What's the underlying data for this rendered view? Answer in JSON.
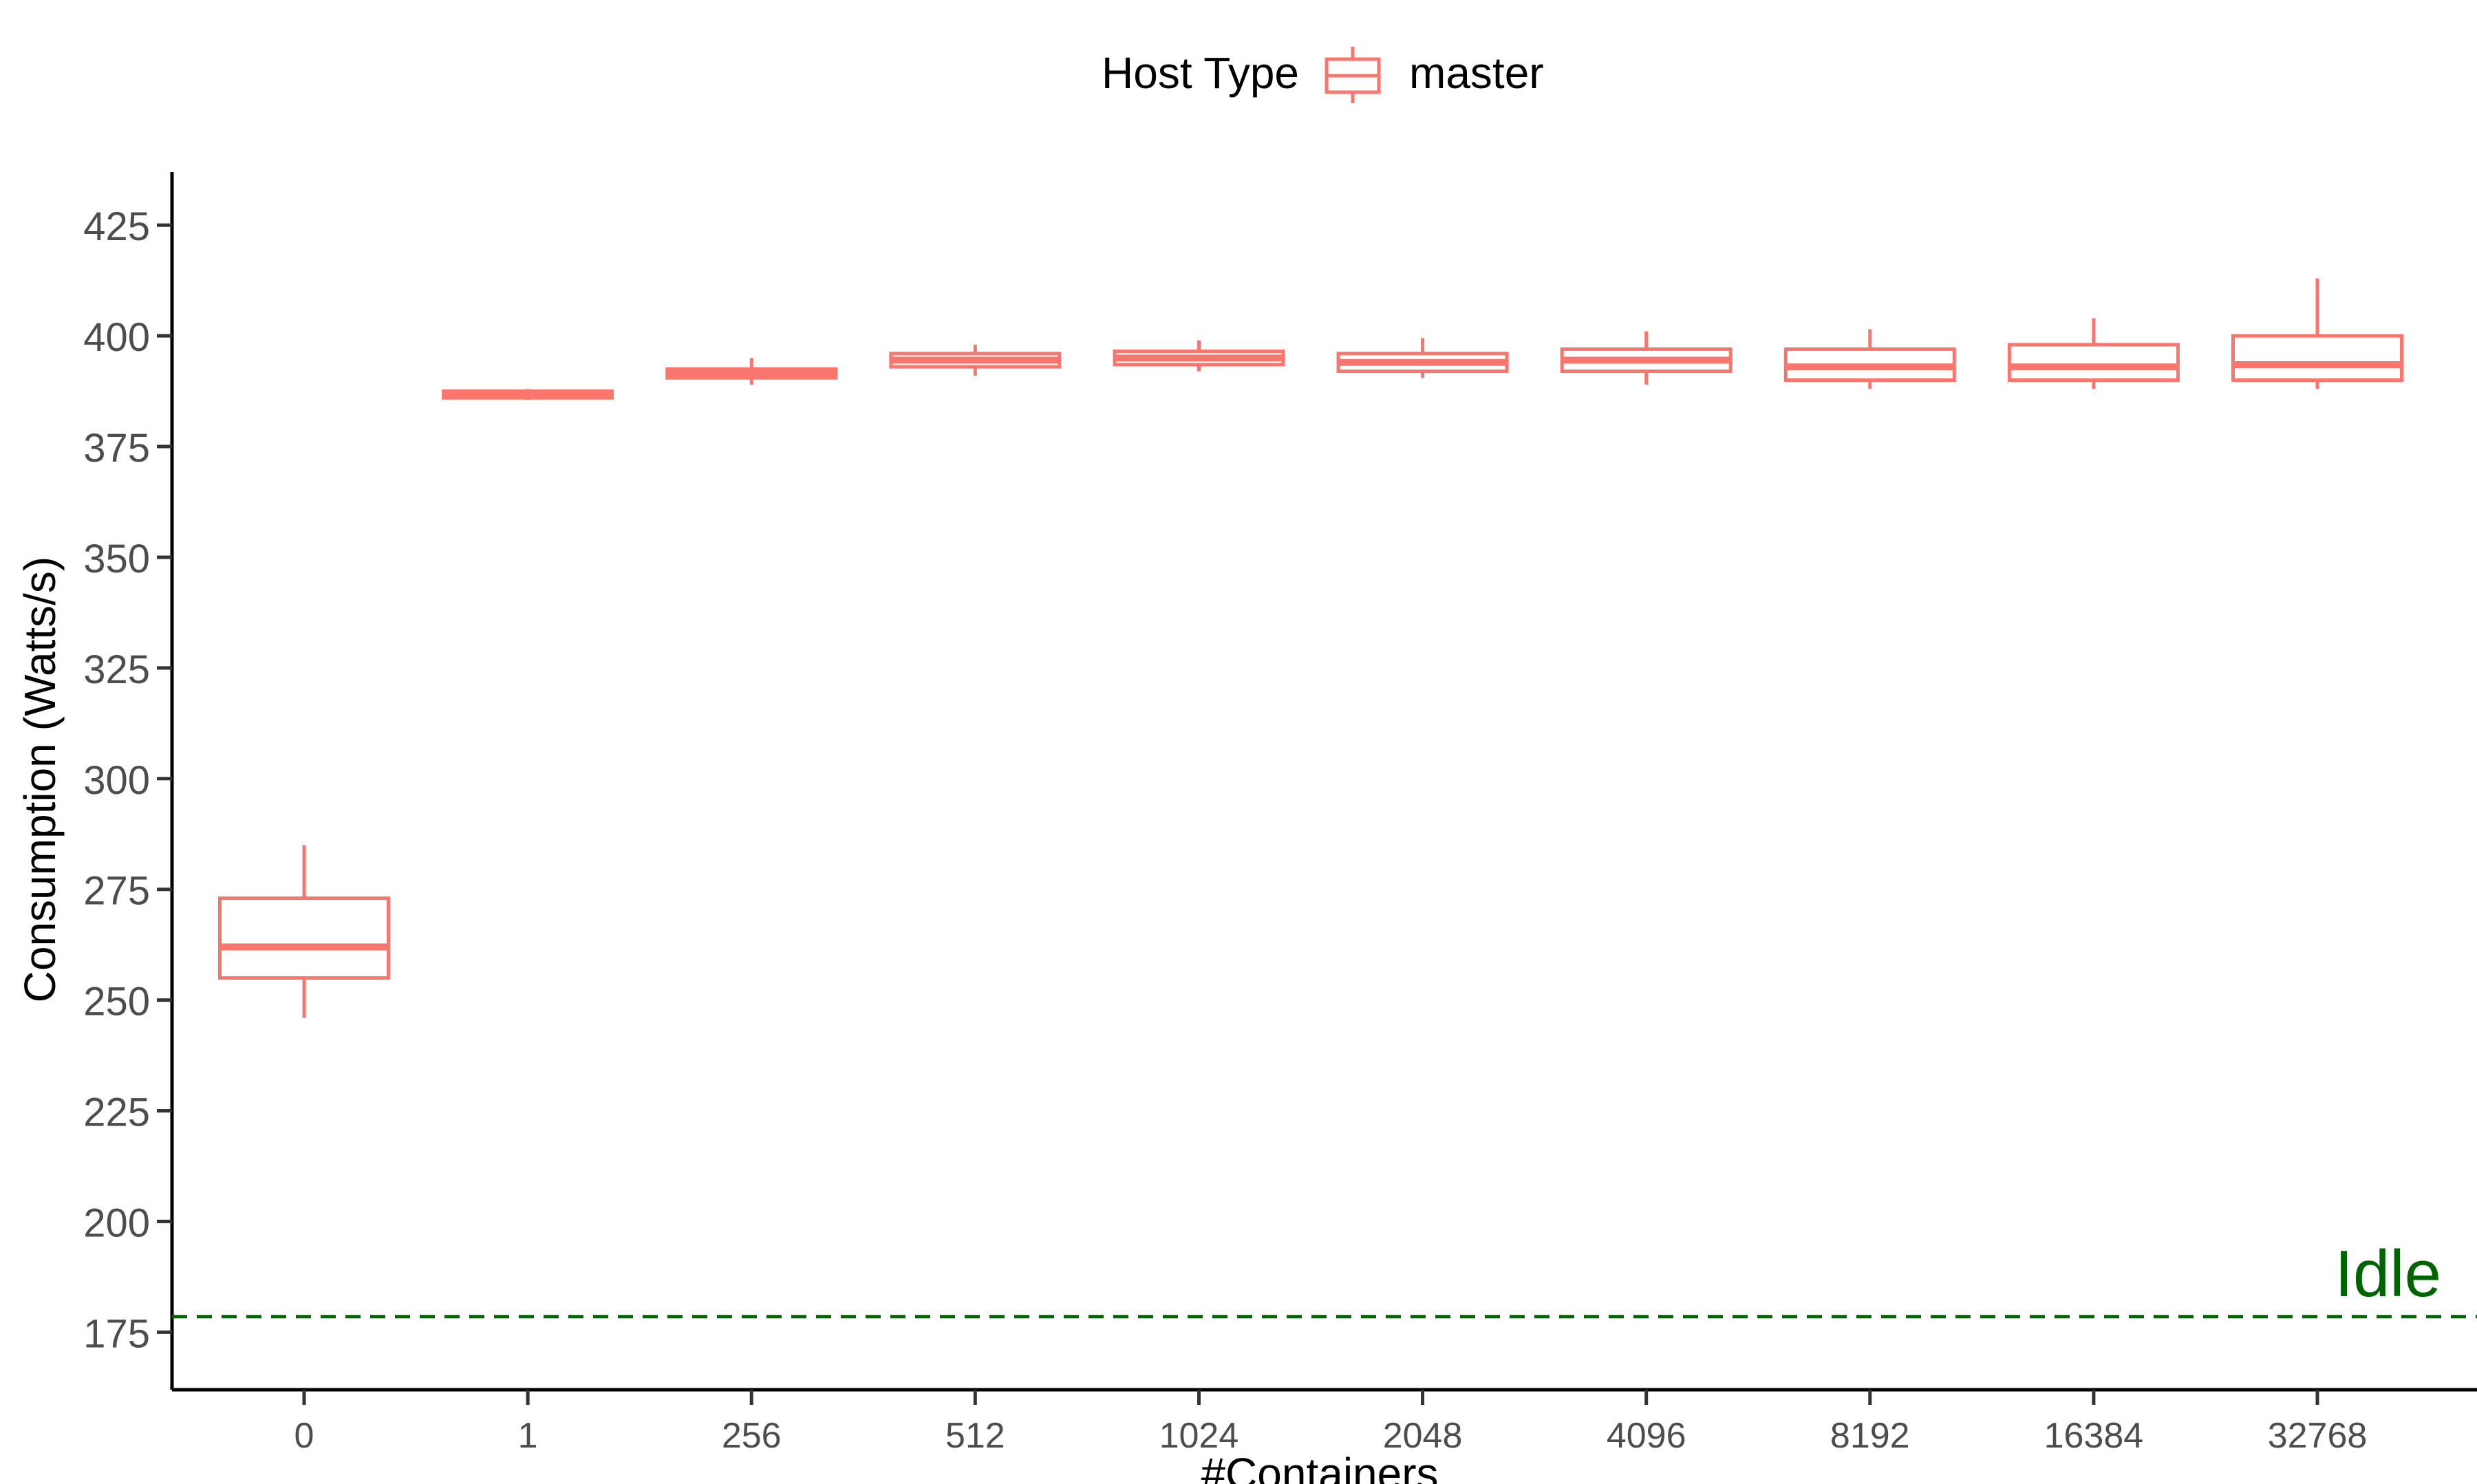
{
  "chart_data": {
    "type": "box",
    "title": "",
    "xlabel": "#Containers",
    "ylabel": "Consumption (Watts/s)",
    "ylim": [
      162,
      437
    ],
    "yticks": [
      175,
      200,
      225,
      250,
      275,
      300,
      325,
      350,
      375,
      400,
      425
    ],
    "grid": false,
    "legend": {
      "title": "Host Type",
      "position": "top",
      "entries": [
        "master"
      ]
    },
    "categories": [
      "0",
      "1",
      "256",
      "512",
      "1024",
      "2048",
      "4096",
      "8192",
      "16384",
      "32768"
    ],
    "series": [
      {
        "name": "master",
        "color": "#F8766D",
        "boxes": [
          {
            "min": 246,
            "q1": 255,
            "median": 262,
            "q3": 273,
            "max": 285
          },
          {
            "min": 385.5,
            "q1": 386,
            "median": 386.8,
            "q3": 387.5,
            "max": 388
          },
          {
            "min": 389,
            "q1": 390.5,
            "median": 391.5,
            "q3": 392.5,
            "max": 395
          },
          {
            "min": 391,
            "q1": 393,
            "median": 394.5,
            "q3": 396,
            "max": 398
          },
          {
            "min": 392,
            "q1": 393.5,
            "median": 395,
            "q3": 396.5,
            "max": 399
          },
          {
            "min": 390.5,
            "q1": 392,
            "median": 394,
            "q3": 396,
            "max": 399.5
          },
          {
            "min": 389,
            "q1": 392,
            "median": 394.5,
            "q3": 397,
            "max": 401
          },
          {
            "min": 388,
            "q1": 390,
            "median": 393,
            "q3": 397,
            "max": 401.5
          },
          {
            "min": 388,
            "q1": 390,
            "median": 393,
            "q3": 398,
            "max": 404
          },
          {
            "min": 388,
            "q1": 390,
            "median": 393.5,
            "q3": 400,
            "max": 413
          }
        ]
      }
    ],
    "reference_line": {
      "value": 178.5,
      "label": "Idle",
      "color": "#006400",
      "style": "dashed"
    }
  }
}
